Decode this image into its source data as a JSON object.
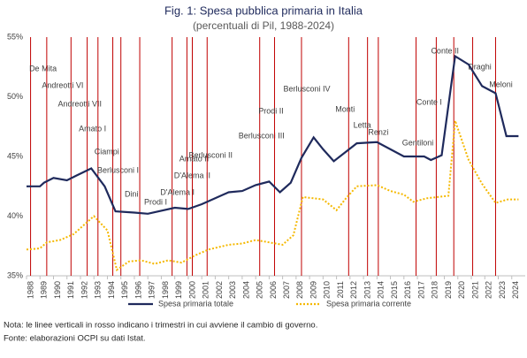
{
  "chart_data": {
    "type": "line",
    "title": "Fig. 1: Spesa pubblica primaria in Italia",
    "subtitle": "(percentuali di Pil, 1988-2024)",
    "xlim": [
      1988,
      2025
    ],
    "xticks": [
      1988,
      1989,
      1990,
      1991,
      1992,
      1993,
      1994,
      1995,
      1996,
      1997,
      1998,
      1999,
      2000,
      2001,
      2002,
      2003,
      2004,
      2005,
      2006,
      2007,
      2008,
      2009,
      2010,
      2011,
      2012,
      2013,
      2014,
      2015,
      2016,
      2017,
      2018,
      2019,
      2020,
      2021,
      2022,
      2023,
      2024
    ],
    "ylim": [
      35,
      55
    ],
    "yticks": [
      {
        "value": 35,
        "label": "35%"
      },
      {
        "value": 40,
        "label": "40%"
      },
      {
        "value": 45,
        "label": "45%"
      },
      {
        "value": 50,
        "label": "50%"
      },
      {
        "value": 55,
        "label": "55%"
      }
    ],
    "grid": false,
    "legend": "bottom",
    "series": [
      {
        "name": "Spesa primaria totale",
        "color": "#1f2a5c",
        "style": "solid",
        "x": [
          1988,
          1989,
          1989.3,
          1990,
          1991,
          1991.7,
          1992.8,
          1993.8,
          1994.6,
          1996,
          1997,
          1999,
          2000,
          2001,
          2003,
          2004,
          2005,
          2006,
          2006.8,
          2007.6,
          2008.4,
          2009.3,
          2010,
          2010.8,
          2011.7,
          2012.5,
          2014,
          2016,
          2017.5,
          2018,
          2018.8,
          2019.8,
          2020.8,
          2021.8,
          2022.8,
          2023.6,
          2024.5
        ],
        "values": [
          42.5,
          42.5,
          42.8,
          43.2,
          43.0,
          43.4,
          44.0,
          42.5,
          40.4,
          40.3,
          40.2,
          40.7,
          40.6,
          41.0,
          42.0,
          42.1,
          42.6,
          42.9,
          42.0,
          42.8,
          44.9,
          46.6,
          45.6,
          44.6,
          45.4,
          46.1,
          46.2,
          45.0,
          45.0,
          44.7,
          45.1,
          53.4,
          52.7,
          50.9,
          50.3,
          46.7,
          46.7
        ]
      },
      {
        "name": "Spesa primaria corrente",
        "color": "#f5b800",
        "style": "dotted",
        "x": [
          1988,
          1989,
          1989.5,
          1990.5,
          1991.5,
          1992,
          1993,
          1994,
          1994.7,
          1995.6,
          1996.5,
          1997.5,
          1998.5,
          1999.5,
          2000.5,
          2001.5,
          2003,
          2004,
          2005,
          2006,
          2007,
          2007.8,
          2008.5,
          2010,
          2011,
          2011.7,
          2012.5,
          2014,
          2015,
          2016,
          2016.7,
          2017.7,
          2018.5,
          2019.3,
          2019.8,
          2020.8,
          2021.8,
          2022.8,
          2023.7,
          2024.5
        ],
        "values": [
          37.2,
          37.3,
          37.8,
          38.0,
          38.5,
          39.0,
          40.0,
          38.8,
          35.5,
          36.2,
          36.3,
          36.0,
          36.3,
          36.1,
          36.7,
          37.2,
          37.6,
          37.7,
          38.0,
          37.8,
          37.6,
          38.4,
          41.6,
          41.4,
          40.5,
          41.5,
          42.5,
          42.6,
          42.1,
          41.8,
          41.2,
          41.5,
          41.6,
          41.7,
          48.0,
          44.7,
          42.7,
          41.1,
          41.4,
          41.4
        ]
      }
    ],
    "annotations": [
      {
        "x": 1988.3,
        "label": "De Mita"
      },
      {
        "x": 1989.5,
        "label": "Andreotti VI"
      },
      {
        "x": 1991.3,
        "label": "Andreotti VII"
      },
      {
        "x": 1992.5,
        "label": "Amato I"
      },
      {
        "x": 1993.3,
        "label": "Ciampi"
      },
      {
        "x": 1994.4,
        "label": "Berlusconi I"
      },
      {
        "x": 1995.0,
        "label": "Dini"
      },
      {
        "x": 1996.4,
        "label": "Prodi I"
      },
      {
        "x": 1998.8,
        "label": "D'Alema I"
      },
      {
        "x": 1999.9,
        "label": "D'Alema II"
      },
      {
        "x": 2000.3,
        "label": "Amato II"
      },
      {
        "x": 2001.4,
        "label": "Berlusconi II"
      },
      {
        "x": 2005.3,
        "label": "Berlusconi III"
      },
      {
        "x": 2006.4,
        "label": "Prodi II"
      },
      {
        "x": 2008.4,
        "label": "Berlusconi IV"
      },
      {
        "x": 2011.9,
        "label": "Monti"
      },
      {
        "x": 2013.3,
        "label": "Letta"
      },
      {
        "x": 2014.1,
        "label": "Renzi"
      },
      {
        "x": 2016.9,
        "label": "Gentiloni"
      },
      {
        "x": 2018.4,
        "label": "Conte I"
      },
      {
        "x": 2019.7,
        "label": "Conte II"
      },
      {
        "x": 2021.1,
        "label": "Draghi"
      },
      {
        "x": 2022.8,
        "label": "Meloni"
      }
    ],
    "annotation_color": "#c00000",
    "notes": [
      "Nota: le linee verticali in rosso indicano i trimestri in cui avviene il cambio di governo.",
      "Fonte: elaborazioni OCPI su dati Istat."
    ]
  }
}
